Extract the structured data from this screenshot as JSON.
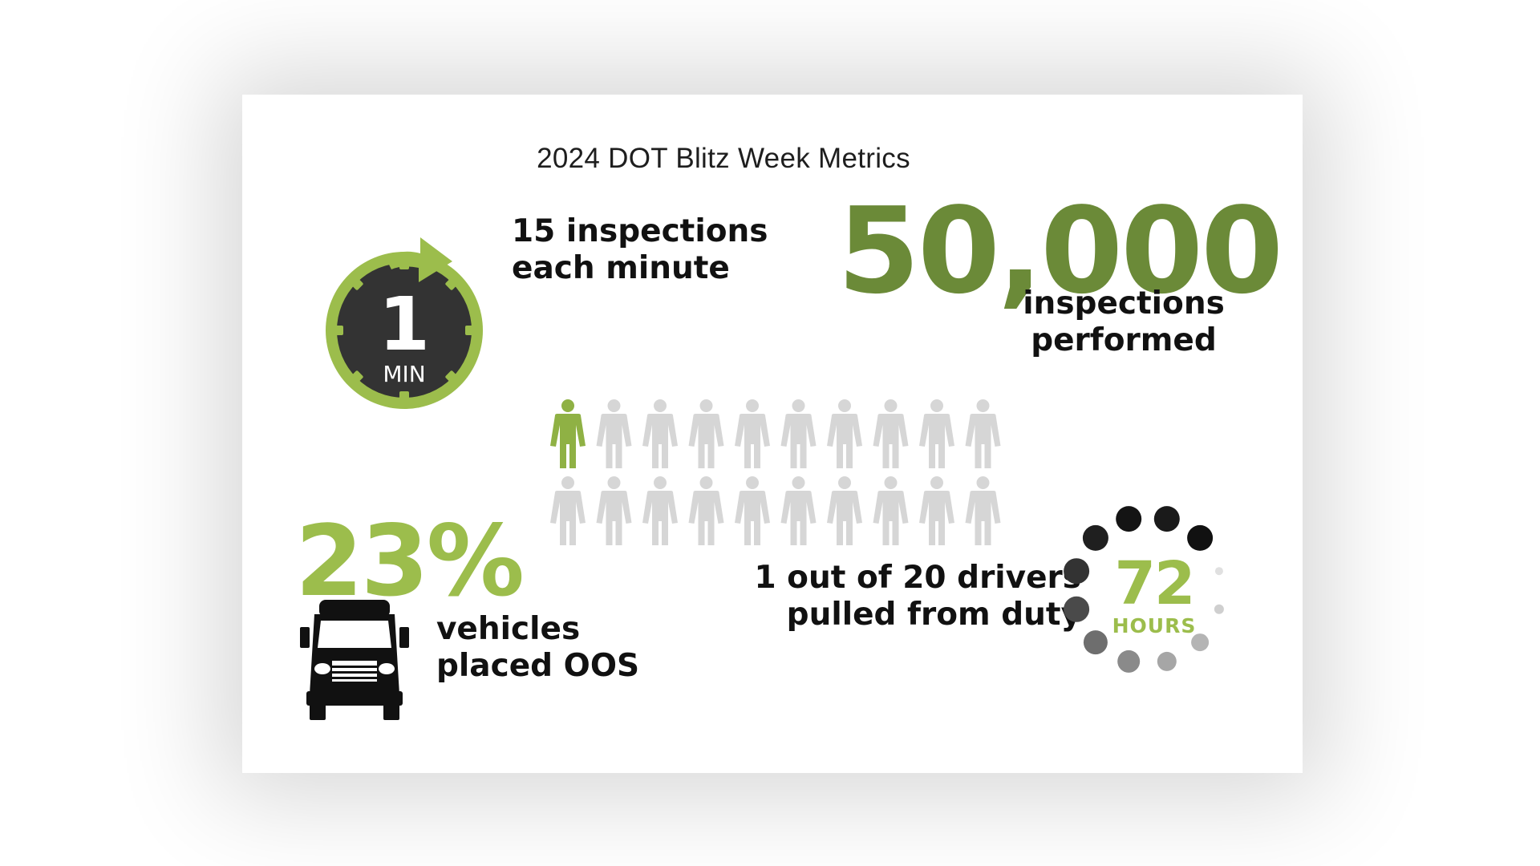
{
  "title": "2024 DOT Blitz Week Metrics",
  "stopwatch": {
    "number": "1",
    "unit": "MIN",
    "colors": {
      "ring": "#9cbd4c",
      "face": "#333333",
      "text": "#ffffff"
    }
  },
  "inspections_per_minute": {
    "line1": "15 inspections",
    "line2": "each minute"
  },
  "total_inspections": {
    "value": "50,000",
    "line1": "inspections",
    "line2": "performed",
    "color": "#6b8a38"
  },
  "drivers": {
    "icon": "person-icon",
    "total_icons": 20,
    "highlighted_icons": 1,
    "line1": "1 out of 20 drivers",
    "line2": "pulled from duty",
    "colors": {
      "highlight": "#8fb144",
      "default": "#d6d6d6"
    }
  },
  "oos": {
    "value": "23%",
    "line1": "vehicles",
    "line2": "placed OOS",
    "icon": "truck-icon",
    "color": "#9cbd4c"
  },
  "duration": {
    "value": "72",
    "unit": "HOURS",
    "icon": "loading-dots-icon",
    "color": "#9cbd4c"
  }
}
